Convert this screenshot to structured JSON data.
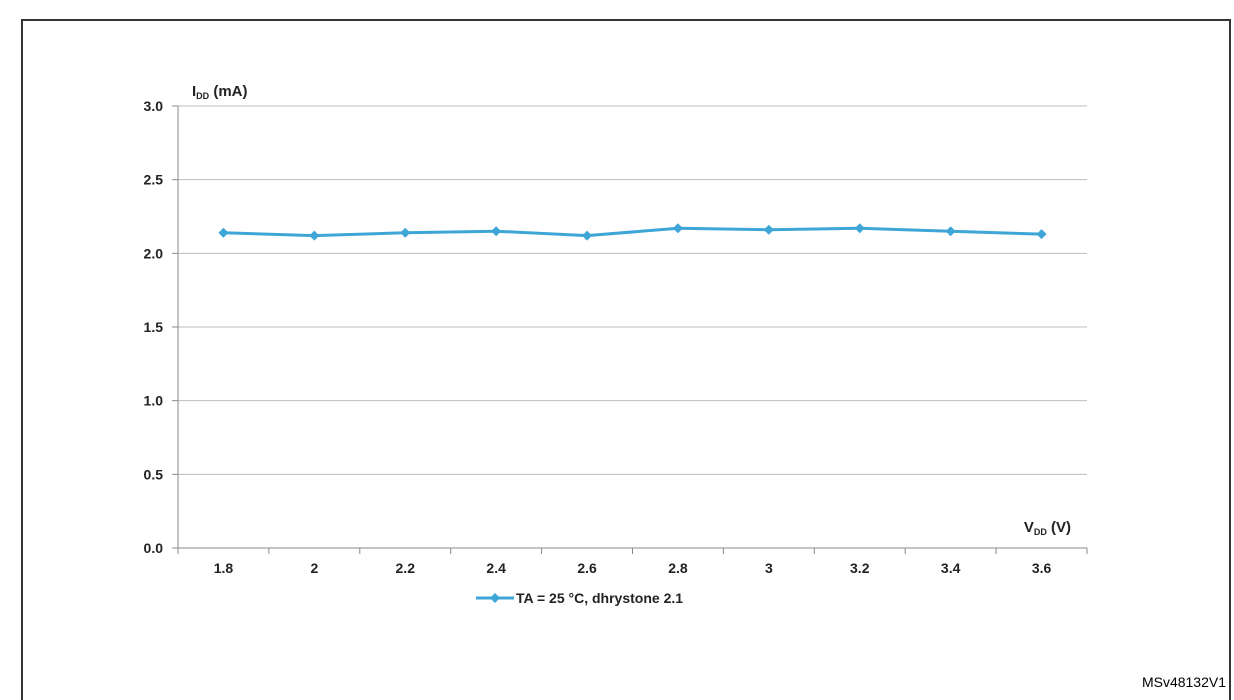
{
  "caption_fragment": "",
  "figure_id": "MSv48132V1",
  "chart_data": {
    "type": "line",
    "title": "",
    "ylabel": "I",
    "ylabel_sub": "DD",
    "ylabel_unit": " (mA)",
    "xlabel": "V",
    "xlabel_sub": "DD",
    "xlabel_unit": " (V)",
    "ylim": [
      0.0,
      3.0
    ],
    "yticks": [
      "0.0",
      "0.5",
      "1.0",
      "1.5",
      "2.0",
      "2.5",
      "3.0"
    ],
    "categories": [
      "1.8",
      "2",
      "2.2",
      "2.4",
      "2.6",
      "2.8",
      "3",
      "3.2",
      "3.4",
      "3.6"
    ],
    "series": [
      {
        "name": "TA = 25 °C, dhrystone 2.1",
        "color": "#3ea6d6",
        "values": [
          2.14,
          2.12,
          2.14,
          2.15,
          2.12,
          2.17,
          2.16,
          2.17,
          2.15,
          2.13
        ]
      }
    ],
    "grid": true,
    "legend": "bottom-center"
  }
}
